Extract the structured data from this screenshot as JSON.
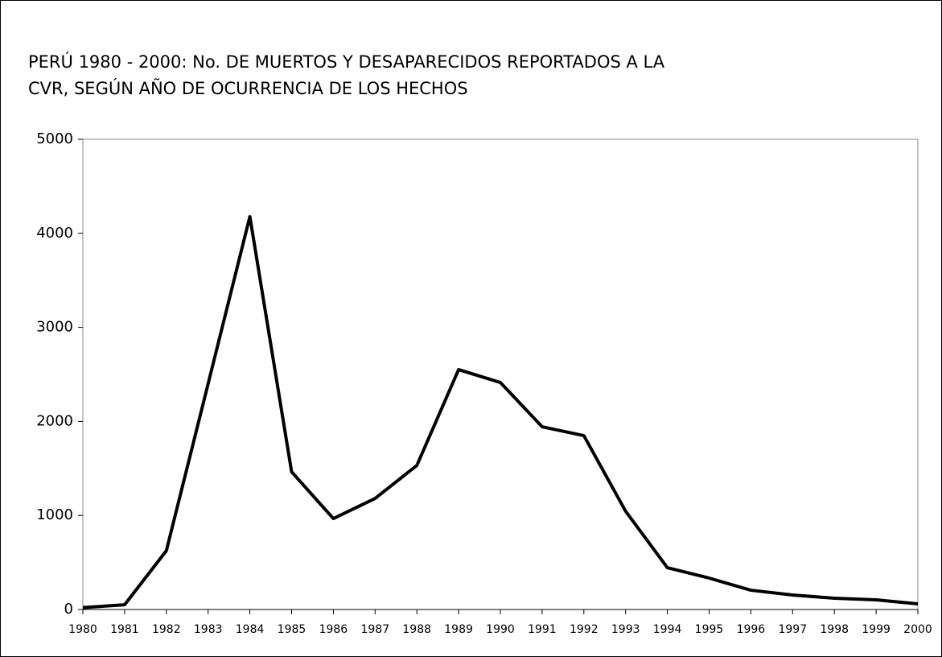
{
  "chart_data": {
    "type": "line",
    "title": [
      "PERÚ 1980 - 2000: No. DE MUERTOS Y DESAPARECIDOS REPORTADOS A LA",
      "CVR, SEGÚN AÑO DE OCURRENCIA DE LOS HECHOS"
    ],
    "categories": [
      "1980",
      "1981",
      "1982",
      "1983",
      "1984",
      "1985",
      "1986",
      "1987",
      "1988",
      "1989",
      "1990",
      "1991",
      "1992",
      "1993",
      "1994",
      "1995",
      "1996",
      "1997",
      "1998",
      "1999",
      "2000"
    ],
    "values": [
      20,
      50,
      625,
      2400,
      4178,
      1464,
      967,
      1181,
      1532,
      2551,
      2414,
      1943,
      1849,
      1045,
      445,
      334,
      205,
      154,
      120,
      103,
      60
    ],
    "color": "#000000",
    "ylim": [
      0,
      5000
    ],
    "yticks": [
      0,
      1000,
      2000,
      3000,
      4000,
      5000
    ],
    "grid": false
  }
}
